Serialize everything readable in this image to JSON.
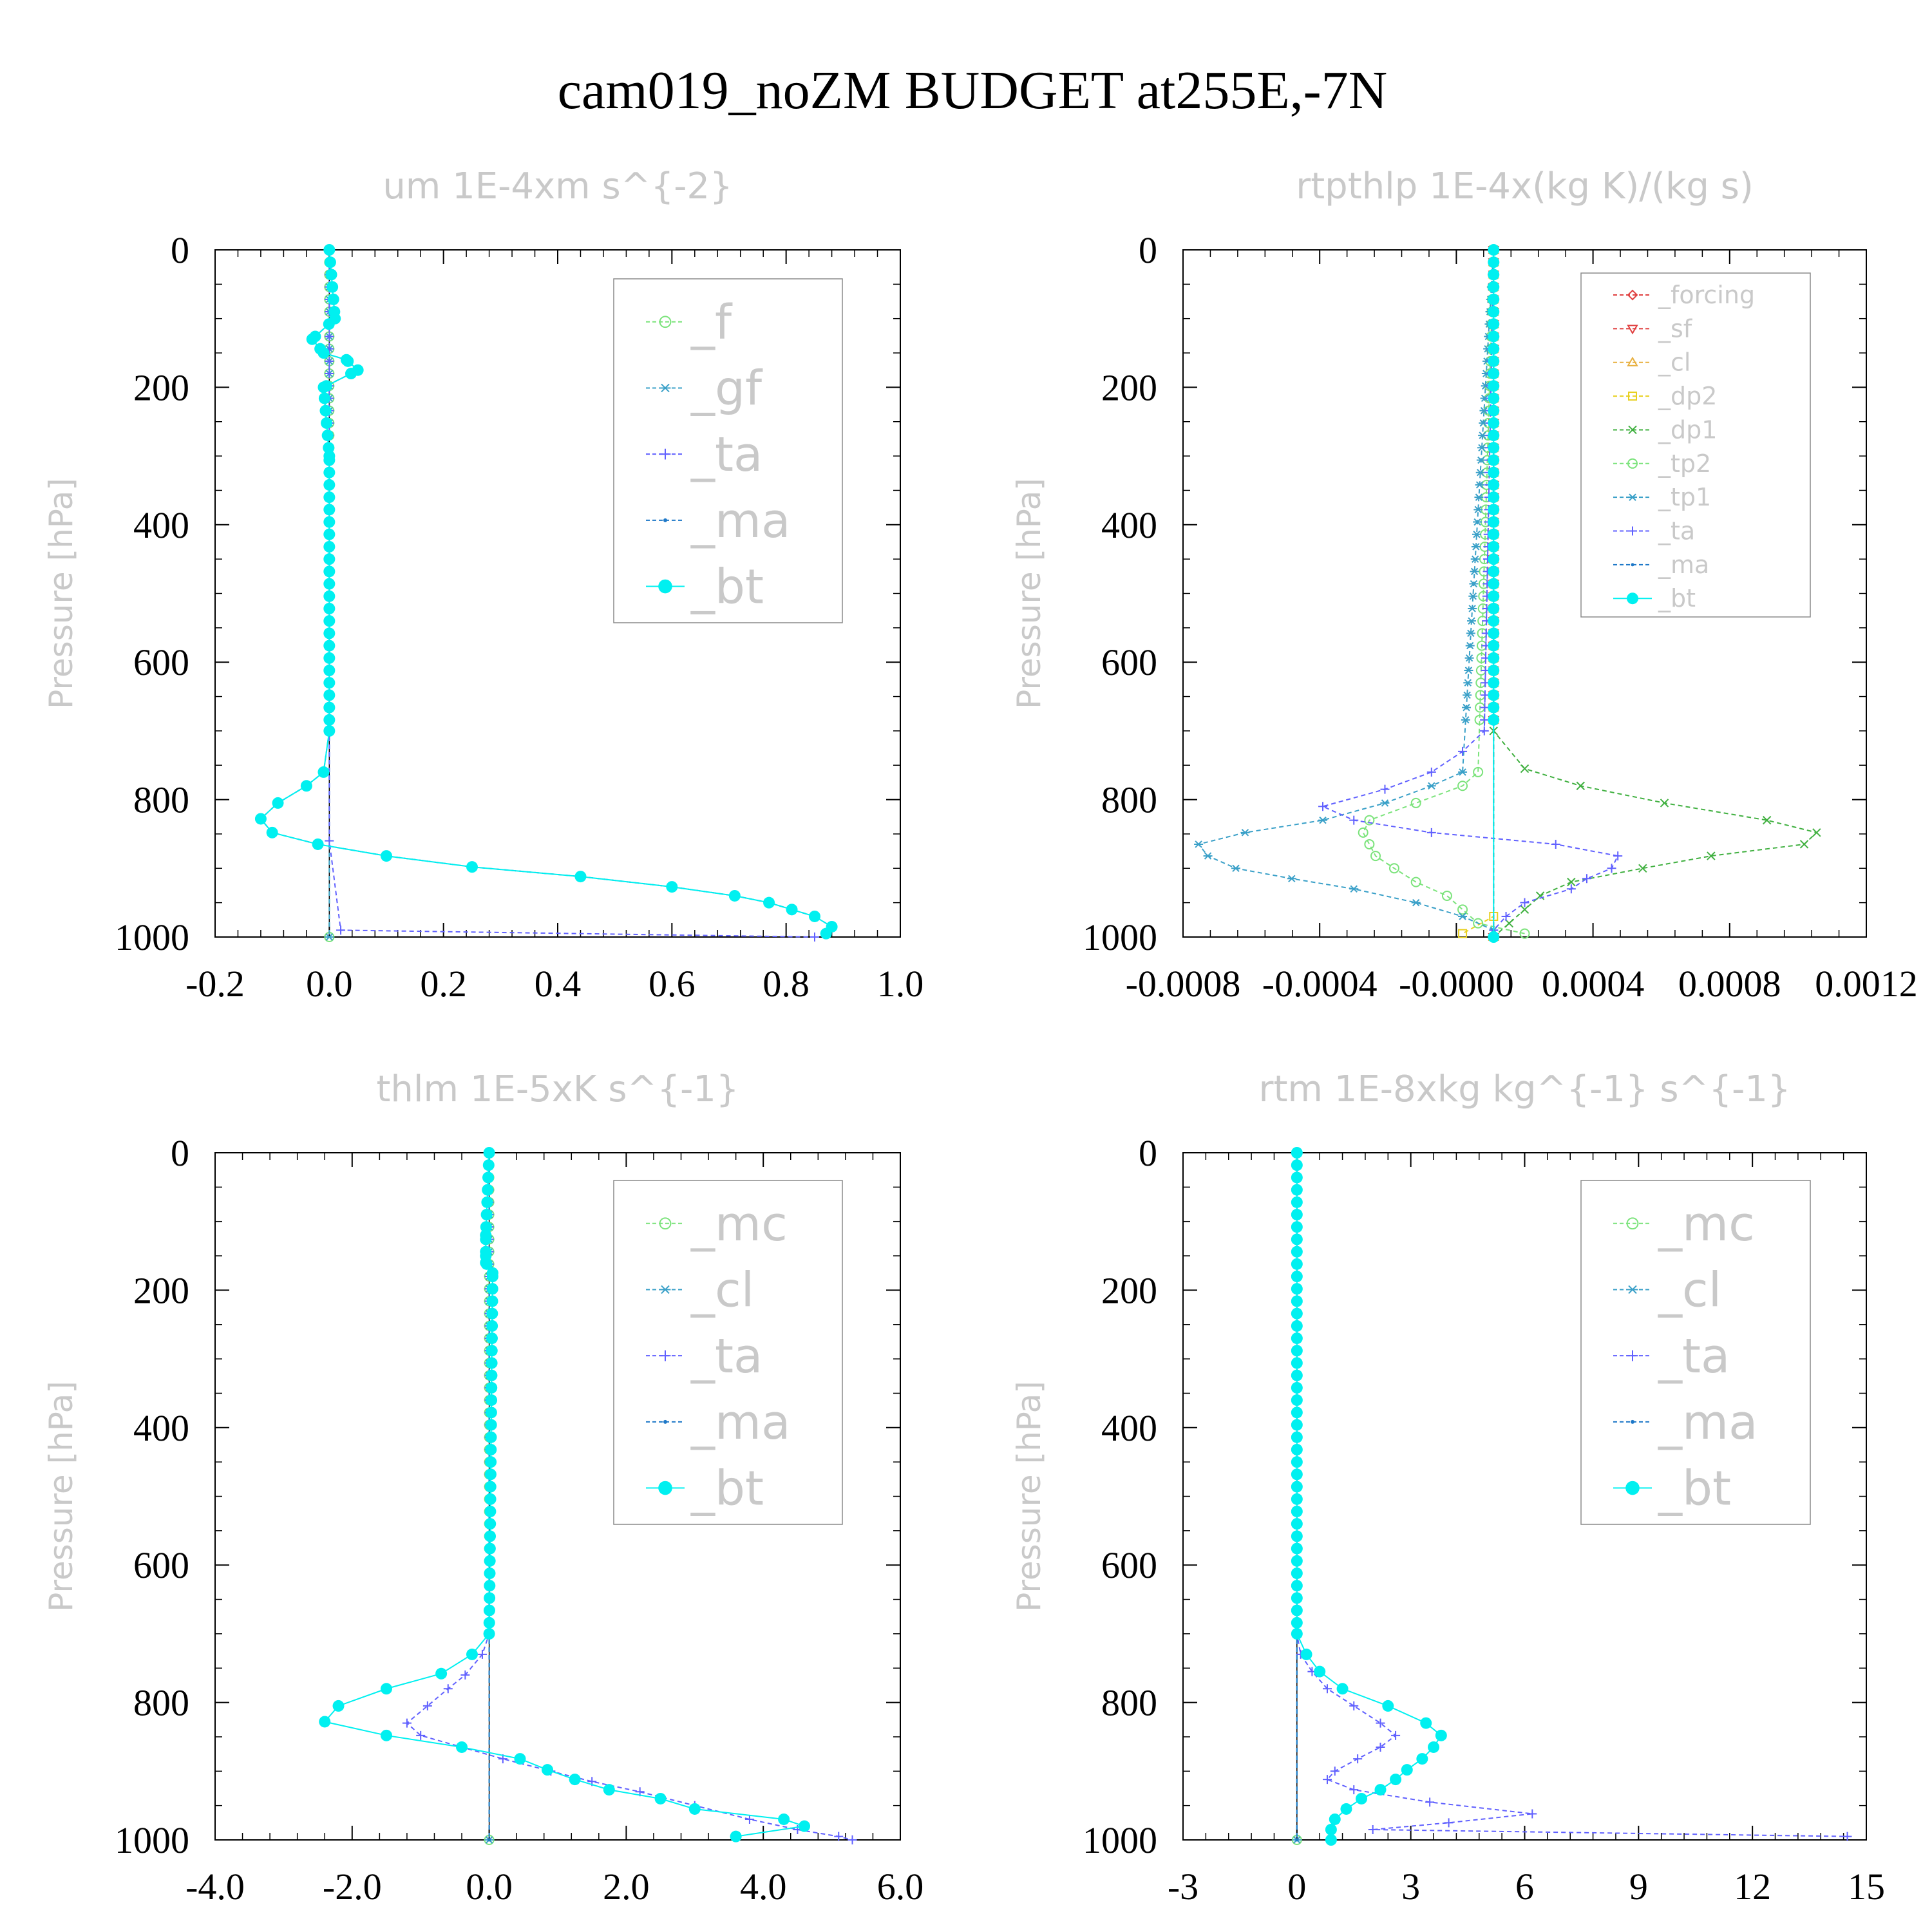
{
  "figure_title": "cam019_noZM  BUDGET at255E,-7N",
  "colors": {
    "_f": "#7be37b",
    "_gf": "#3aa0c8",
    "_ta": "#6060ff",
    "_ma": "#1e78c8",
    "_bt": "#00f0f0",
    "_mc": "#7be37b",
    "_cl": "#3aa0c8",
    "_forcing": "#e04040",
    "_sf": "#e04040",
    "_cl_rt": "#e8b040",
    "_dp2": "#e8d020",
    "_dp1": "#40b040",
    "_tp2": "#7be37b",
    "_tp1": "#3aa0c8"
  },
  "chart_data": [
    {
      "type": "line",
      "title": "um  1E-4xm s^{-2}",
      "ylabel": "Pressure [hPa]",
      "xlim": [
        -0.2,
        1.0
      ],
      "ylim": [
        1000,
        0
      ],
      "xticks": [
        "-0.2",
        "0.0",
        "0.2",
        "0.4",
        "0.6",
        "0.8",
        "1.0"
      ],
      "yticks": [
        "0",
        "200",
        "400",
        "600",
        "800",
        "1000"
      ],
      "legend_placement": "top-right",
      "legend": [
        "_f",
        "_gf",
        "_ta",
        "_ma",
        "_bt"
      ],
      "series": [
        {
          "name": "_f",
          "p": [
            0,
            1000
          ],
          "x": [
            0.0,
            0.0
          ]
        },
        {
          "name": "_gf",
          "p": [
            0,
            1000
          ],
          "x": [
            0.0,
            0.0
          ]
        },
        {
          "name": "_ta",
          "p": [
            0,
            860,
            990,
            1000
          ],
          "x": [
            0.0,
            0.0,
            0.02,
            0.85
          ]
        },
        {
          "name": "_ma",
          "p": [
            0,
            100,
            130,
            150,
            160,
            175,
            200,
            300,
            700,
            760,
            780,
            805,
            828,
            848,
            865,
            882,
            898,
            912,
            927,
            940,
            950,
            960,
            970,
            985,
            995
          ],
          "x": [
            0.0,
            0.01,
            -0.03,
            -0.01,
            0.03,
            0.05,
            -0.01,
            0.0,
            0.0,
            -0.01,
            -0.04,
            -0.09,
            -0.12,
            -0.1,
            -0.02,
            0.1,
            0.25,
            0.44,
            0.6,
            0.71,
            0.77,
            0.81,
            0.85,
            0.88,
            0.87
          ]
        },
        {
          "name": "_bt",
          "p": [
            0,
            100,
            130,
            150,
            160,
            175,
            200,
            300,
            700,
            760,
            780,
            805,
            828,
            848,
            865,
            882,
            898,
            912,
            927,
            940,
            950,
            960,
            970,
            985,
            995
          ],
          "x": [
            0.0,
            0.01,
            -0.03,
            -0.01,
            0.03,
            0.05,
            -0.01,
            0.0,
            0.0,
            -0.01,
            -0.04,
            -0.09,
            -0.12,
            -0.1,
            -0.02,
            0.1,
            0.25,
            0.44,
            0.6,
            0.71,
            0.77,
            0.81,
            0.85,
            0.88,
            0.87
          ]
        }
      ]
    },
    {
      "type": "line",
      "title": "rtpthlp  1E-4x(kg K)/(kg s)",
      "ylabel": "Pressure [hPa]",
      "xlim": [
        -0.001,
        0.0012
      ],
      "ylim": [
        1000,
        0
      ],
      "xticks": [
        "-0.0008",
        "-0.0004",
        "-0.0000",
        "0.0004",
        "0.0008",
        "0.0012"
      ],
      "yticks": [
        "0",
        "200",
        "400",
        "600",
        "800",
        "1000"
      ],
      "legend_placement": "top-right",
      "legend": [
        "_forcing",
        "_sf",
        "_cl",
        "_dp2",
        "_dp1",
        "_tp2",
        "_tp1",
        "_ta",
        "_ma",
        "_bt"
      ],
      "series": [
        {
          "name": "_forcing",
          "p": [
            0,
            1000
          ],
          "x": [
            0.0,
            0.0
          ]
        },
        {
          "name": "_sf",
          "p": [
            0,
            1000
          ],
          "x": [
            0.0,
            0.0
          ]
        },
        {
          "name": "_cl",
          "p": [
            0,
            1000
          ],
          "x": [
            0.0,
            0.0
          ]
        },
        {
          "name": "_dp2",
          "p": [
            0,
            970,
            995
          ],
          "x": [
            0.0,
            0.0,
            -0.0001
          ]
        },
        {
          "name": "_dp1",
          "p": [
            0,
            700,
            755,
            780,
            805,
            830,
            848,
            865,
            882,
            900,
            920,
            940,
            960,
            980,
            1000
          ],
          "x": [
            0.0,
            0.0,
            0.0001,
            0.00028,
            0.00055,
            0.00088,
            0.00104,
            0.001,
            0.0007,
            0.00048,
            0.00025,
            0.00015,
            0.0001,
            5e-05,
            0.0
          ]
        },
        {
          "name": "_tp2",
          "p": [
            0,
            760,
            780,
            805,
            830,
            848,
            865,
            882,
            900,
            920,
            940,
            960,
            980,
            995
          ],
          "x": [
            0.0,
            -5e-05,
            -0.0001,
            -0.00025,
            -0.0004,
            -0.00042,
            -0.0004,
            -0.00038,
            -0.00032,
            -0.00025,
            -0.00015,
            -0.0001,
            -5e-05,
            0.0001
          ]
        },
        {
          "name": "_tp1",
          "p": [
            0,
            760,
            780,
            805,
            830,
            848,
            865,
            882,
            900,
            915,
            930,
            950,
            970,
            990
          ],
          "x": [
            0.0,
            -0.0001,
            -0.0002,
            -0.00035,
            -0.00055,
            -0.0008,
            -0.00095,
            -0.00092,
            -0.00083,
            -0.00065,
            -0.00045,
            -0.00025,
            -0.0001,
            0.0
          ]
        },
        {
          "name": "_ta",
          "p": [
            0,
            700,
            730,
            760,
            785,
            810,
            830,
            848,
            865,
            882,
            900,
            915,
            930,
            950,
            970,
            990
          ],
          "x": [
            0.0,
            -3e-05,
            -0.0001,
            -0.0002,
            -0.00035,
            -0.00055,
            -0.00045,
            -0.0002,
            0.0002,
            0.0004,
            0.00038,
            0.0003,
            0.00025,
            0.0001,
            4e-05,
            0.0
          ]
        },
        {
          "name": "_ma",
          "p": [
            0,
            1000
          ],
          "x": [
            0.0,
            0.0
          ]
        },
        {
          "name": "_bt",
          "p": [
            0,
            1000
          ],
          "x": [
            0.0,
            0.0
          ]
        }
      ]
    },
    {
      "type": "line",
      "title": "thlm  1E-5xK s^{-1}",
      "ylabel": "Pressure [hPa]",
      "xlim": [
        -4.0,
        6.0
      ],
      "ylim": [
        1000,
        0
      ],
      "xticks": [
        "-4.0",
        "-2.0",
        "0.0",
        "2.0",
        "4.0",
        "6.0"
      ],
      "yticks": [
        "0",
        "200",
        "400",
        "600",
        "800",
        "1000"
      ],
      "legend_placement": "top-right",
      "legend": [
        "_mc",
        "_cl",
        "_ta",
        "_ma",
        "_bt"
      ],
      "series": [
        {
          "name": "_mc",
          "p": [
            0,
            1000
          ],
          "x": [
            0.0,
            0.0
          ]
        },
        {
          "name": "_cl",
          "p": [
            0,
            1000
          ],
          "x": [
            0.0,
            0.0
          ]
        },
        {
          "name": "_ta",
          "p": [
            0,
            700,
            730,
            760,
            780,
            805,
            830,
            848,
            865,
            882,
            900,
            915,
            930,
            950,
            970,
            985,
            995,
            1000
          ],
          "x": [
            0.0,
            0.0,
            -0.1,
            -0.35,
            -0.6,
            -0.9,
            -1.2,
            -1.0,
            -0.4,
            0.2,
            0.9,
            1.5,
            2.2,
            3.0,
            3.8,
            4.5,
            5.1,
            5.3
          ]
        },
        {
          "name": "_ma",
          "p": [
            0,
            1000
          ],
          "x": [
            0.0,
            0.0
          ]
        },
        {
          "name": "_bt",
          "p": [
            0,
            120,
            150,
            160,
            175,
            700,
            730,
            758,
            780,
            805,
            828,
            848,
            865,
            882,
            898,
            912,
            927,
            940,
            955,
            970,
            980,
            995
          ],
          "x": [
            0.0,
            -0.05,
            -0.05,
            -0.05,
            0.05,
            0.0,
            -0.25,
            -0.7,
            -1.5,
            -2.2,
            -2.4,
            -1.5,
            -0.4,
            0.45,
            0.85,
            1.25,
            1.75,
            2.5,
            3.0,
            4.3,
            4.6,
            3.6
          ]
        }
      ]
    },
    {
      "type": "line",
      "title": "rtm  1E-8xkg kg^{-1} s^{-1}",
      "ylabel": "Pressure [hPa]",
      "xlim": [
        -3,
        15
      ],
      "ylim": [
        1000,
        0
      ],
      "xticks": [
        "-3",
        "0",
        "3",
        "6",
        "9",
        "12",
        "15"
      ],
      "yticks": [
        "0",
        "200",
        "400",
        "600",
        "800",
        "1000"
      ],
      "legend_placement": "top-right",
      "legend": [
        "_mc",
        "_cl",
        "_ta",
        "_ma",
        "_bt"
      ],
      "series": [
        {
          "name": "_mc",
          "p": [
            0,
            1000
          ],
          "x": [
            0.0,
            0.0
          ]
        },
        {
          "name": "_cl",
          "p": [
            0,
            1000
          ],
          "x": [
            0.0,
            0.0
          ]
        },
        {
          "name": "_ta",
          "p": [
            0,
            700,
            730,
            755,
            780,
            805,
            830,
            848,
            865,
            882,
            900,
            912,
            927,
            945,
            962,
            975,
            985,
            995
          ],
          "x": [
            0.0,
            0.0,
            0.1,
            0.4,
            0.8,
            1.5,
            2.2,
            2.6,
            2.2,
            1.6,
            1.0,
            0.8,
            1.5,
            3.5,
            6.2,
            4.0,
            2.0,
            14.5
          ]
        },
        {
          "name": "_ma",
          "p": [
            0,
            1000
          ],
          "x": [
            0.0,
            0.0
          ]
        },
        {
          "name": "_bt",
          "p": [
            0,
            700,
            730,
            755,
            780,
            805,
            830,
            848,
            865,
            882,
            898,
            912,
            927,
            940,
            955,
            970,
            985,
            1000
          ],
          "x": [
            0.0,
            0.0,
            0.25,
            0.6,
            1.2,
            2.4,
            3.4,
            3.8,
            3.6,
            3.3,
            2.9,
            2.6,
            2.2,
            1.7,
            1.3,
            1.0,
            0.9,
            0.9
          ]
        }
      ]
    }
  ]
}
